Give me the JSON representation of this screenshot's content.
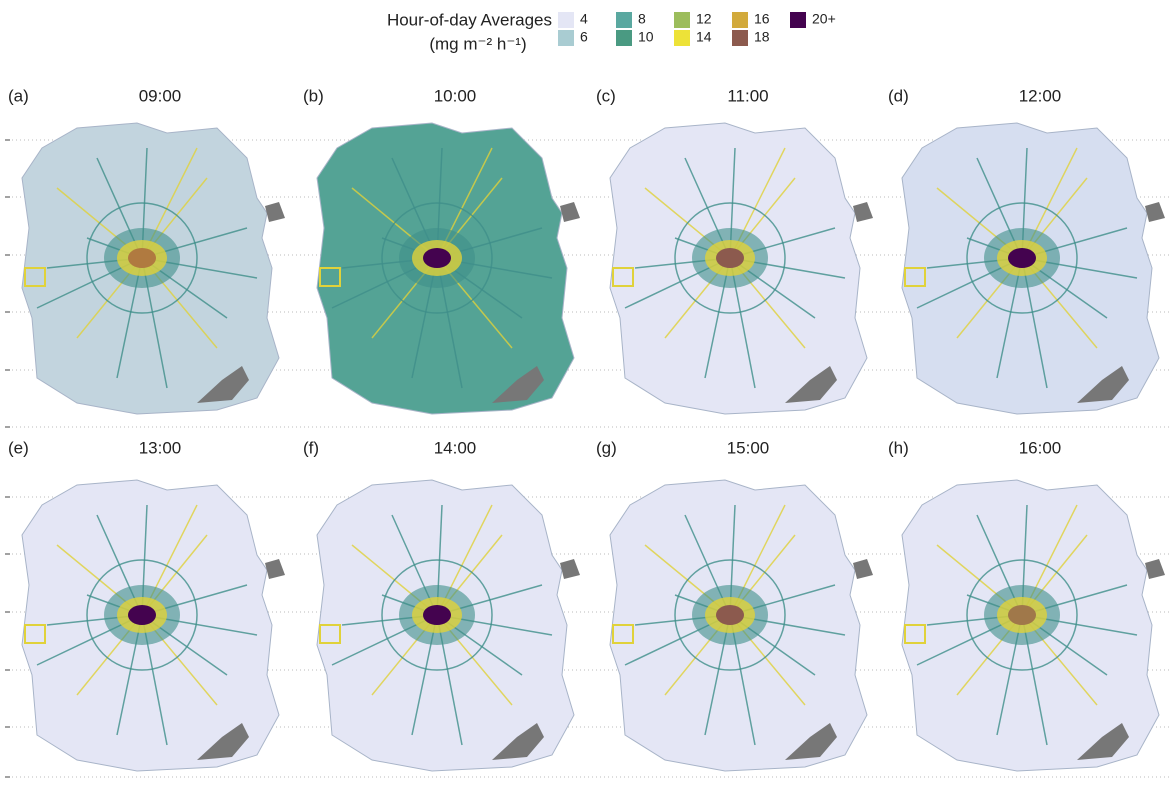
{
  "legend": {
    "title": "Hour-of-day Averages",
    "units": "(mg m⁻² h⁻¹)",
    "items": [
      {
        "label": "4",
        "color": "#e4e6f5"
      },
      {
        "label": "6",
        "color": "#a9ccd2"
      },
      {
        "label": "8",
        "color": "#5aa8a0"
      },
      {
        "label": "10",
        "color": "#4a9a82"
      },
      {
        "label": "12",
        "color": "#9cbd5c"
      },
      {
        "label": "14",
        "color": "#ede238"
      },
      {
        "label": "16",
        "color": "#d2aa3c"
      },
      {
        "label": "18",
        "color": "#8c5a4e"
      },
      {
        "label": "20+",
        "color": "#44034f"
      }
    ]
  },
  "panels": [
    {
      "label": "(a)",
      "time": "09:00",
      "color": "#c2d4de",
      "core": "#b07a40"
    },
    {
      "label": "(b)",
      "time": "10:00",
      "color": "#54a395",
      "core": "#44034f"
    },
    {
      "label": "(c)",
      "time": "11:00",
      "color": "#e4e6f5",
      "core": "#8c5a4e"
    },
    {
      "label": "(d)",
      "time": "12:00",
      "color": "#d6def0",
      "core": "#44034f"
    },
    {
      "label": "(e)",
      "time": "13:00",
      "color": "#e4e6f5",
      "core": "#44034f"
    },
    {
      "label": "(f)",
      "time": "14:00",
      "color": "#e4e6f5",
      "core": "#44034f"
    },
    {
      "label": "(g)",
      "time": "15:00",
      "color": "#e4e6f5",
      "core": "#8c5a4e"
    },
    {
      "label": "(h)",
      "time": "16:00",
      "color": "#e4e6f5",
      "core": "#a0784a"
    }
  ]
}
